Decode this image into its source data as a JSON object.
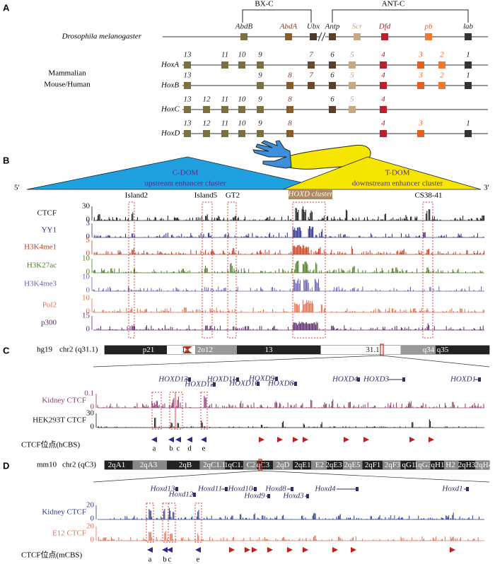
{
  "panelA": {
    "label": "A",
    "complexes": [
      "BX-C",
      "ANT-C"
    ],
    "species": "Drosophila melanogaster",
    "flyGenes": [
      "AbdB",
      "AbdA",
      "Ubx",
      "Antp",
      "Scr",
      "Dfd",
      "pb",
      "lab"
    ],
    "mammal": [
      "Mammalian",
      "Mouse/Human"
    ],
    "clusters": [
      {
        "name": "HoxA",
        "paralogs": [
          "13",
          "11",
          "10",
          "9",
          "7",
          "6",
          "5",
          "4",
          "3",
          "2",
          "1"
        ]
      },
      {
        "name": "HoxB",
        "paralogs": [
          "13",
          "9",
          "8",
          "7",
          "6",
          "5",
          "4",
          "3",
          "2",
          "1"
        ]
      },
      {
        "name": "HoxC",
        "paralogs": [
          "13",
          "12",
          "11",
          "10",
          "9",
          "8",
          "6",
          "5",
          "4"
        ]
      },
      {
        "name": "HoxD",
        "paralogs": [
          "13",
          "12",
          "11",
          "10",
          "9",
          "8",
          "4",
          "3",
          "1"
        ]
      }
    ]
  },
  "panelB": {
    "label": "B",
    "cdom": [
      "C-DOM",
      "upstream enhancer cluster"
    ],
    "tdom": [
      "T-DOM",
      "downstream enhancer cluster"
    ],
    "ends": [
      "5′",
      "3′"
    ],
    "cluster": "HOXD cluster",
    "regions": [
      "Island2",
      "Island5",
      "GT2",
      "CS38-41"
    ],
    "tracks": [
      {
        "name": "CTCF",
        "ticks": [
          "30",
          "0"
        ],
        "color": "#111111"
      },
      {
        "name": "YY1",
        "ticks": [
          "3",
          "0"
        ],
        "color": "#2b2a8a"
      },
      {
        "name": "H3K4me1",
        "ticks": [
          "5",
          "0"
        ],
        "color": "#c83c1e"
      },
      {
        "name": "H3K27ac",
        "ticks": [
          "10",
          "0"
        ],
        "color": "#4a7a20"
      },
      {
        "name": "H3K4me3",
        "ticks": [
          "10",
          "0"
        ],
        "color": "#7060b0"
      },
      {
        "name": "Pol2",
        "ticks": [
          "10",
          "0"
        ],
        "color": "#e07050"
      },
      {
        "name": "p300",
        "ticks": [
          "15",
          "0"
        ],
        "color": "#5a2a6a"
      }
    ]
  },
  "panelC": {
    "label": "C",
    "assembly": "hg19",
    "chrom": "chr2 (q31.1)",
    "bands": [
      "p21",
      "14",
      "2o12",
      "13",
      "31.1",
      "q34",
      "q35"
    ],
    "genes": [
      "HOXD13",
      "HOXD12",
      "HOXD11",
      "HOXD10",
      "HOXD9",
      "HOXD8",
      "HOXD4",
      "HOXD3",
      "HOXD1"
    ],
    "tracks": [
      {
        "name": "Kidney CTCF",
        "ticks": [
          "0.1",
          "0"
        ],
        "color": "#8a3a6a"
      },
      {
        "name": "HEK293T CTCF",
        "ticks": [
          "30",
          "0"
        ],
        "color": "#111111"
      }
    ],
    "sites": "CTCF位点(hCBS)",
    "letters": [
      "a",
      "b",
      "c",
      "d",
      "e"
    ]
  },
  "panelD": {
    "label": "D",
    "assembly": "mm10",
    "chrom": "chr2 (qC3)",
    "bands": [
      "2qA1",
      "2qA3",
      "2qB",
      "2qC1.1",
      "1qC1.3",
      "C2",
      "qC3",
      "2qD",
      "2qE1",
      "E2",
      "2qE3",
      "2qE5",
      "2qF1",
      "2qF3",
      "qG1",
      "1qG3",
      "qH1",
      "H2",
      "2qH3",
      "2qH4"
    ],
    "genes": [
      "Hoxd13",
      "Hoxd12",
      "Hoxd11",
      "Hoxd10",
      "Hoxd9",
      "Hoxd8",
      "Hoxd3",
      "Hoxd4",
      "Hoxd1"
    ],
    "tracks": [
      {
        "name": "Kidney CTCF",
        "ticks": [
          "20",
          "0"
        ],
        "color": "#2b3a8a"
      },
      {
        "name": "E12 CTCF",
        "ticks": [
          "20",
          "0"
        ],
        "color": "#e07050"
      }
    ],
    "sites": "CTCF位点(mCBS)",
    "letters": [
      "a",
      "b",
      "c",
      "e"
    ]
  }
}
